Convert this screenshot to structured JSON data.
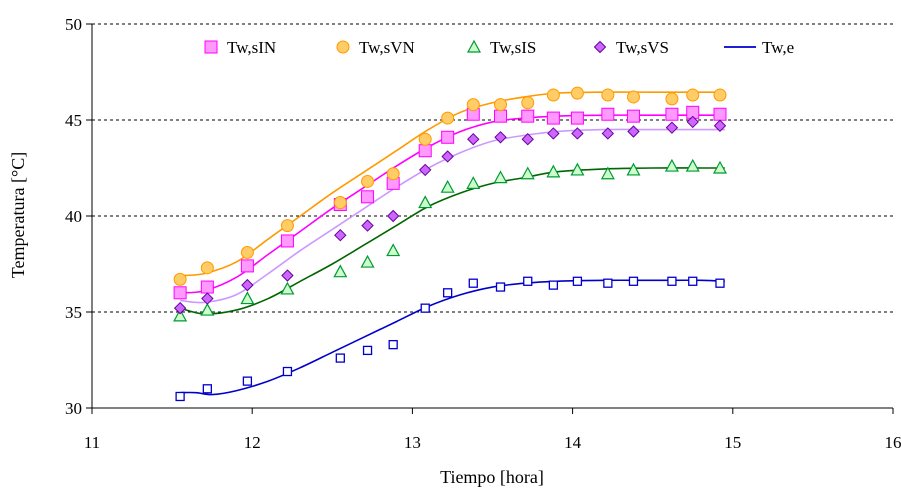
{
  "chart_data": {
    "type": "line",
    "title": "",
    "xlabel": "Tiempo [hora]",
    "ylabel": "Temperatura [°C]",
    "xlim": [
      11,
      16
    ],
    "ylim": [
      30,
      50
    ],
    "xticks": [
      11,
      12,
      13,
      14,
      15,
      16
    ],
    "yticks": [
      30,
      35,
      40,
      45,
      50
    ],
    "grid": "horizontal-dashed",
    "legend_position": "top",
    "x": [
      11.55,
      11.72,
      11.97,
      12.22,
      12.55,
      12.72,
      12.88,
      13.08,
      13.22,
      13.38,
      13.55,
      13.72,
      13.88,
      14.03,
      14.22,
      14.38,
      14.62,
      14.75,
      14.92
    ],
    "series": [
      {
        "name": "Tw,sIN",
        "kind": "markers",
        "marker": "square",
        "color": "#ff00ff",
        "fill": "#ff99ff",
        "values": [
          36.0,
          36.3,
          37.4,
          38.7,
          40.6,
          41.0,
          41.7,
          43.4,
          44.1,
          45.3,
          45.2,
          45.2,
          45.1,
          45.1,
          45.3,
          45.2,
          45.3,
          45.4,
          45.3
        ]
      },
      {
        "name": "Tw,sVN",
        "kind": "markers",
        "marker": "circle",
        "color": "#ff9900",
        "fill": "#ffcc66",
        "values": [
          36.7,
          37.3,
          38.1,
          39.5,
          40.7,
          41.8,
          42.2,
          44.0,
          45.1,
          45.8,
          45.8,
          45.9,
          46.3,
          46.4,
          46.3,
          46.2,
          46.1,
          46.3,
          46.3
        ]
      },
      {
        "name": "Tw,sIS",
        "kind": "markers",
        "marker": "triangle",
        "color": "#009933",
        "fill": "#ccffcc",
        "values": [
          34.8,
          35.1,
          35.7,
          36.2,
          37.1,
          37.6,
          38.2,
          40.7,
          41.5,
          41.7,
          42.0,
          42.2,
          42.3,
          42.4,
          42.2,
          42.4,
          42.6,
          42.6,
          42.5
        ]
      },
      {
        "name": "Tw,sVS",
        "kind": "markers",
        "marker": "diamond",
        "color": "#660099",
        "fill": "#cc66ff",
        "values": [
          35.2,
          35.7,
          36.4,
          36.9,
          39.0,
          39.5,
          40.0,
          42.4,
          43.1,
          44.0,
          44.1,
          44.0,
          44.3,
          44.3,
          44.3,
          44.4,
          44.6,
          44.9,
          44.7
        ]
      },
      {
        "name": "Tw,e",
        "kind": "markers",
        "marker": "square-open",
        "color": "#0000cc",
        "fill": "#ffffff",
        "values": [
          30.6,
          31.0,
          31.4,
          31.9,
          32.6,
          33.0,
          33.3,
          35.2,
          36.0,
          36.5,
          36.3,
          36.6,
          36.4,
          36.6,
          36.5,
          36.6,
          36.6,
          36.6,
          36.5
        ]
      }
    ],
    "fitted_lines": [
      {
        "name": "Tw,sIN",
        "color": "#ff00ff",
        "x": [
          11.55,
          11.7,
          11.9,
          12.1,
          12.3,
          12.5,
          12.7,
          12.9,
          13.1,
          13.3,
          13.5,
          13.7,
          13.9,
          14.2,
          14.5,
          14.8,
          14.95
        ],
        "y": [
          36.0,
          36.1,
          36.8,
          38.0,
          39.2,
          40.4,
          41.5,
          42.6,
          43.6,
          44.4,
          44.9,
          45.1,
          45.2,
          45.25,
          45.25,
          45.25,
          45.25
        ]
      },
      {
        "name": "Tw,sVN",
        "color": "#ff9900",
        "x": [
          11.55,
          11.7,
          11.9,
          12.1,
          12.3,
          12.5,
          12.7,
          12.9,
          13.1,
          13.3,
          13.5,
          13.7,
          13.9,
          14.2,
          14.5,
          14.8,
          14.95
        ],
        "y": [
          36.9,
          37.0,
          37.6,
          38.8,
          40.0,
          41.2,
          42.3,
          43.4,
          44.5,
          45.4,
          45.9,
          46.2,
          46.4,
          46.45,
          46.45,
          46.45,
          46.45
        ]
      },
      {
        "name": "Tw,sIS",
        "color": "#006600",
        "x": [
          11.55,
          11.7,
          11.9,
          12.1,
          12.3,
          12.5,
          12.7,
          12.9,
          13.1,
          13.3,
          13.5,
          13.7,
          13.9,
          14.2,
          14.5,
          14.8,
          14.95
        ],
        "y": [
          35.2,
          34.9,
          35.1,
          35.7,
          36.6,
          37.5,
          38.5,
          39.5,
          40.5,
          41.2,
          41.7,
          42.0,
          42.3,
          42.45,
          42.5,
          42.5,
          42.5
        ]
      },
      {
        "name": "Tw,sVS",
        "color": "#cc99ff",
        "x": [
          11.55,
          11.7,
          11.9,
          12.1,
          12.3,
          12.5,
          12.7,
          12.9,
          13.1,
          13.3,
          13.5,
          13.7,
          13.9,
          14.2,
          14.5,
          14.8,
          14.95
        ],
        "y": [
          35.6,
          35.5,
          35.9,
          37.0,
          38.2,
          39.3,
          40.4,
          41.5,
          42.5,
          43.3,
          43.9,
          44.2,
          44.4,
          44.5,
          44.5,
          44.5,
          44.5
        ]
      },
      {
        "name": "Tw,e",
        "color": "#0000cc",
        "x": [
          11.55,
          11.65,
          11.75,
          11.9,
          12.1,
          12.3,
          12.5,
          12.7,
          12.9,
          13.1,
          13.3,
          13.5,
          13.7,
          13.9,
          14.2,
          14.5,
          14.8,
          14.95
        ],
        "y": [
          30.8,
          30.8,
          30.7,
          30.9,
          31.4,
          32.1,
          32.9,
          33.7,
          34.5,
          35.3,
          35.9,
          36.3,
          36.5,
          36.6,
          36.65,
          36.65,
          36.65,
          36.6
        ]
      }
    ]
  }
}
